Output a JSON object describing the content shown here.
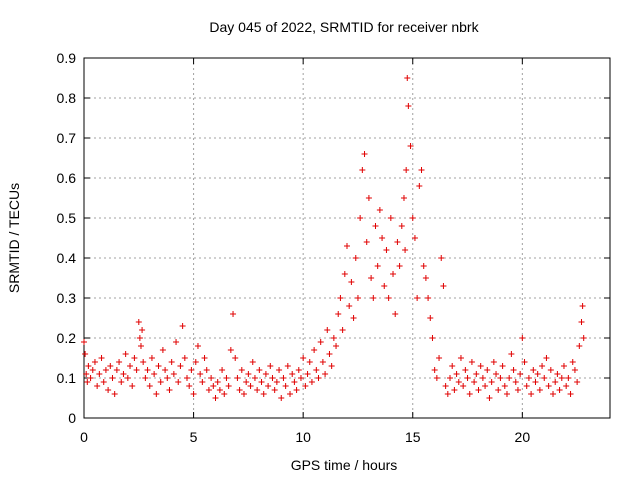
{
  "chart_data": {
    "type": "scatter",
    "title": "Day 045 of 2022, SRMTID for receiver nbrk",
    "xlabel": "GPS time / hours",
    "ylabel": "SRMTID / TECUs",
    "xlim": [
      0,
      24
    ],
    "ylim": [
      0,
      0.9
    ],
    "xticks": [
      0,
      5,
      10,
      15,
      20
    ],
    "yticks": [
      0,
      0.1,
      0.2,
      0.3,
      0.4,
      0.5,
      0.6,
      0.7,
      0.8,
      0.9
    ],
    "grid": true,
    "marker": "+",
    "marker_color": "#e00000",
    "series": [
      {
        "name": "SRMTID",
        "x": [
          0.0,
          0.05,
          0.1,
          0.15,
          0.2,
          0.3,
          0.4,
          0.5,
          0.6,
          0.7,
          0.8,
          0.9,
          1.0,
          1.1,
          1.2,
          1.3,
          1.4,
          1.5,
          1.6,
          1.7,
          1.8,
          1.9,
          2.0,
          2.1,
          2.2,
          2.3,
          2.4,
          2.5,
          2.55,
          2.6,
          2.65,
          2.7,
          2.8,
          2.9,
          3.0,
          3.1,
          3.2,
          3.3,
          3.4,
          3.5,
          3.6,
          3.7,
          3.8,
          3.9,
          4.0,
          4.1,
          4.2,
          4.3,
          4.4,
          4.5,
          4.6,
          4.7,
          4.8,
          4.9,
          5.0,
          5.1,
          5.2,
          5.3,
          5.4,
          5.5,
          5.6,
          5.7,
          5.8,
          5.9,
          6.0,
          6.1,
          6.2,
          6.3,
          6.4,
          6.5,
          6.6,
          6.7,
          6.8,
          6.9,
          7.0,
          7.1,
          7.2,
          7.3,
          7.4,
          7.5,
          7.6,
          7.7,
          7.8,
          7.9,
          8.0,
          8.1,
          8.2,
          8.3,
          8.4,
          8.5,
          8.6,
          8.7,
          8.8,
          8.9,
          9.0,
          9.1,
          9.2,
          9.3,
          9.4,
          9.5,
          9.6,
          9.7,
          9.8,
          9.9,
          10.0,
          10.1,
          10.2,
          10.3,
          10.4,
          10.5,
          10.6,
          10.7,
          10.8,
          10.9,
          11.0,
          11.1,
          11.2,
          11.3,
          11.4,
          11.5,
          11.6,
          11.7,
          11.8,
          11.9,
          12.0,
          12.1,
          12.2,
          12.3,
          12.4,
          12.5,
          12.6,
          12.7,
          12.8,
          12.9,
          13.0,
          13.1,
          13.2,
          13.3,
          13.4,
          13.5,
          13.6,
          13.7,
          13.8,
          13.9,
          14.0,
          14.1,
          14.2,
          14.3,
          14.4,
          14.5,
          14.6,
          14.65,
          14.7,
          14.75,
          14.8,
          14.9,
          15.0,
          15.1,
          15.2,
          15.3,
          15.4,
          15.5,
          15.6,
          15.7,
          15.8,
          15.9,
          16.0,
          16.1,
          16.2,
          16.3,
          16.4,
          16.5,
          16.6,
          16.7,
          16.8,
          16.9,
          17.0,
          17.1,
          17.2,
          17.3,
          17.4,
          17.5,
          17.6,
          17.7,
          17.8,
          17.9,
          18.0,
          18.1,
          18.2,
          18.3,
          18.4,
          18.5,
          18.6,
          18.7,
          18.8,
          18.9,
          19.0,
          19.1,
          19.2,
          19.3,
          19.4,
          19.5,
          19.6,
          19.7,
          19.8,
          19.9,
          20.0,
          20.1,
          20.2,
          20.3,
          20.4,
          20.5,
          20.6,
          20.7,
          20.8,
          20.9,
          21.0,
          21.1,
          21.2,
          21.3,
          21.4,
          21.5,
          21.6,
          21.7,
          21.8,
          21.9,
          22.0,
          22.1,
          22.2,
          22.3,
          22.4,
          22.5,
          22.6,
          22.7,
          22.75,
          22.8
        ],
        "y": [
          0.19,
          0.16,
          0.11,
          0.09,
          0.13,
          0.1,
          0.12,
          0.14,
          0.08,
          0.11,
          0.15,
          0.09,
          0.12,
          0.07,
          0.13,
          0.1,
          0.06,
          0.12,
          0.14,
          0.09,
          0.11,
          0.16,
          0.1,
          0.13,
          0.08,
          0.15,
          0.12,
          0.24,
          0.2,
          0.18,
          0.22,
          0.14,
          0.1,
          0.12,
          0.08,
          0.15,
          0.11,
          0.06,
          0.13,
          0.09,
          0.17,
          0.12,
          0.1,
          0.07,
          0.14,
          0.11,
          0.19,
          0.09,
          0.13,
          0.23,
          0.15,
          0.1,
          0.08,
          0.12,
          0.06,
          0.14,
          0.18,
          0.11,
          0.09,
          0.15,
          0.12,
          0.07,
          0.1,
          0.08,
          0.05,
          0.09,
          0.07,
          0.12,
          0.06,
          0.1,
          0.08,
          0.17,
          0.26,
          0.15,
          0.1,
          0.07,
          0.12,
          0.06,
          0.09,
          0.11,
          0.08,
          0.14,
          0.1,
          0.07,
          0.12,
          0.09,
          0.06,
          0.11,
          0.08,
          0.13,
          0.1,
          0.07,
          0.09,
          0.12,
          0.05,
          0.1,
          0.08,
          0.13,
          0.06,
          0.11,
          0.09,
          0.07,
          0.12,
          0.1,
          0.15,
          0.08,
          0.11,
          0.14,
          0.09,
          0.17,
          0.12,
          0.1,
          0.19,
          0.14,
          0.11,
          0.22,
          0.16,
          0.13,
          0.2,
          0.18,
          0.26,
          0.3,
          0.22,
          0.36,
          0.43,
          0.28,
          0.34,
          0.25,
          0.4,
          0.3,
          0.5,
          0.62,
          0.66,
          0.44,
          0.55,
          0.35,
          0.3,
          0.48,
          0.38,
          0.52,
          0.45,
          0.33,
          0.42,
          0.3,
          0.5,
          0.36,
          0.26,
          0.44,
          0.38,
          0.48,
          0.55,
          0.42,
          0.62,
          0.85,
          0.78,
          0.68,
          0.5,
          0.45,
          0.3,
          0.58,
          0.62,
          0.38,
          0.35,
          0.3,
          0.25,
          0.2,
          0.12,
          0.1,
          0.15,
          0.4,
          0.33,
          0.08,
          0.06,
          0.1,
          0.13,
          0.07,
          0.11,
          0.09,
          0.15,
          0.08,
          0.12,
          0.1,
          0.06,
          0.14,
          0.09,
          0.11,
          0.07,
          0.13,
          0.1,
          0.08,
          0.12,
          0.05,
          0.09,
          0.14,
          0.11,
          0.07,
          0.1,
          0.13,
          0.08,
          0.06,
          0.1,
          0.16,
          0.12,
          0.09,
          0.07,
          0.11,
          0.2,
          0.14,
          0.08,
          0.1,
          0.06,
          0.12,
          0.09,
          0.11,
          0.07,
          0.13,
          0.1,
          0.15,
          0.08,
          0.12,
          0.06,
          0.09,
          0.11,
          0.07,
          0.1,
          0.13,
          0.08,
          0.1,
          0.06,
          0.14,
          0.12,
          0.09,
          0.18,
          0.24,
          0.28,
          0.2
        ]
      }
    ]
  }
}
